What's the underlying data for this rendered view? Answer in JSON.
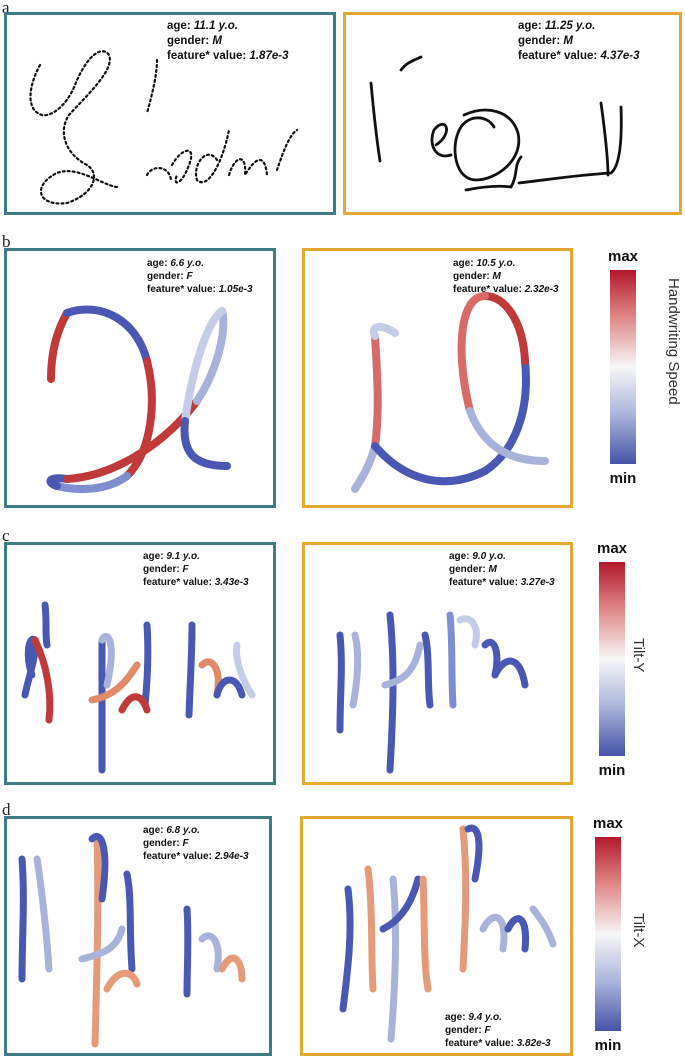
{
  "labels": {
    "a": "a",
    "b": "b",
    "c": "c",
    "d": "d"
  },
  "info_keys": {
    "age": "age:",
    "gender": "gender:",
    "feature": "feature* value:"
  },
  "panels": {
    "a_left": {
      "age": "11.1 y.o.",
      "gender": "M",
      "feature": "1.87e-3"
    },
    "a_right": {
      "age": "11.25 y.o.",
      "gender": "M",
      "feature": "4.37e-3"
    },
    "b_left": {
      "age": "6.6 y.o.",
      "gender": "F",
      "feature": "1.05e-3"
    },
    "b_right": {
      "age": "10.5 y.o.",
      "gender": "M",
      "feature": "2.32e-3"
    },
    "c_left": {
      "age": "9.1 y.o.",
      "gender": "F",
      "feature": "3.43e-3"
    },
    "c_right": {
      "age": "9.0 y.o.",
      "gender": "M",
      "feature": "3.27e-3"
    },
    "d_left": {
      "age": "6.8 y.o.",
      "gender": "F",
      "feature": "2.94e-3"
    },
    "d_right": {
      "age": "9.4 y.o.",
      "gender": "F",
      "feature": "3.82e-3"
    }
  },
  "colorbars": {
    "b": {
      "max": "max",
      "min": "min",
      "label": "Handwriting Speed"
    },
    "c": {
      "max": "max",
      "min": "min",
      "label": "Tilt-Y"
    },
    "d": {
      "max": "max",
      "min": "min",
      "label": "Tilt-X"
    }
  },
  "colors": {
    "teal_border": "#3d7c83",
    "orange_border": "#e5a833",
    "low": "#4a57b3",
    "mid": "#dde2ee",
    "high": "#c0393b"
  }
}
